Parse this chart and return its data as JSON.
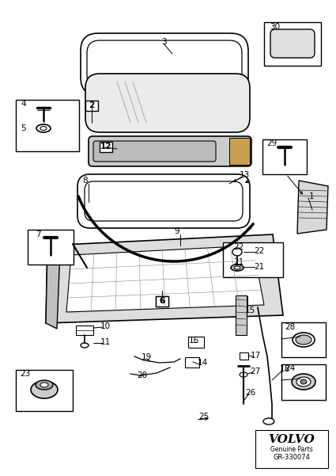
{
  "background_color": "#ffffff",
  "volvo_text": "VOLVO",
  "genuine_parts": "Genuine Parts",
  "part_number": "GR-330074",
  "fig_width": 4.25,
  "fig_height": 6.01,
  "dpi": 100
}
